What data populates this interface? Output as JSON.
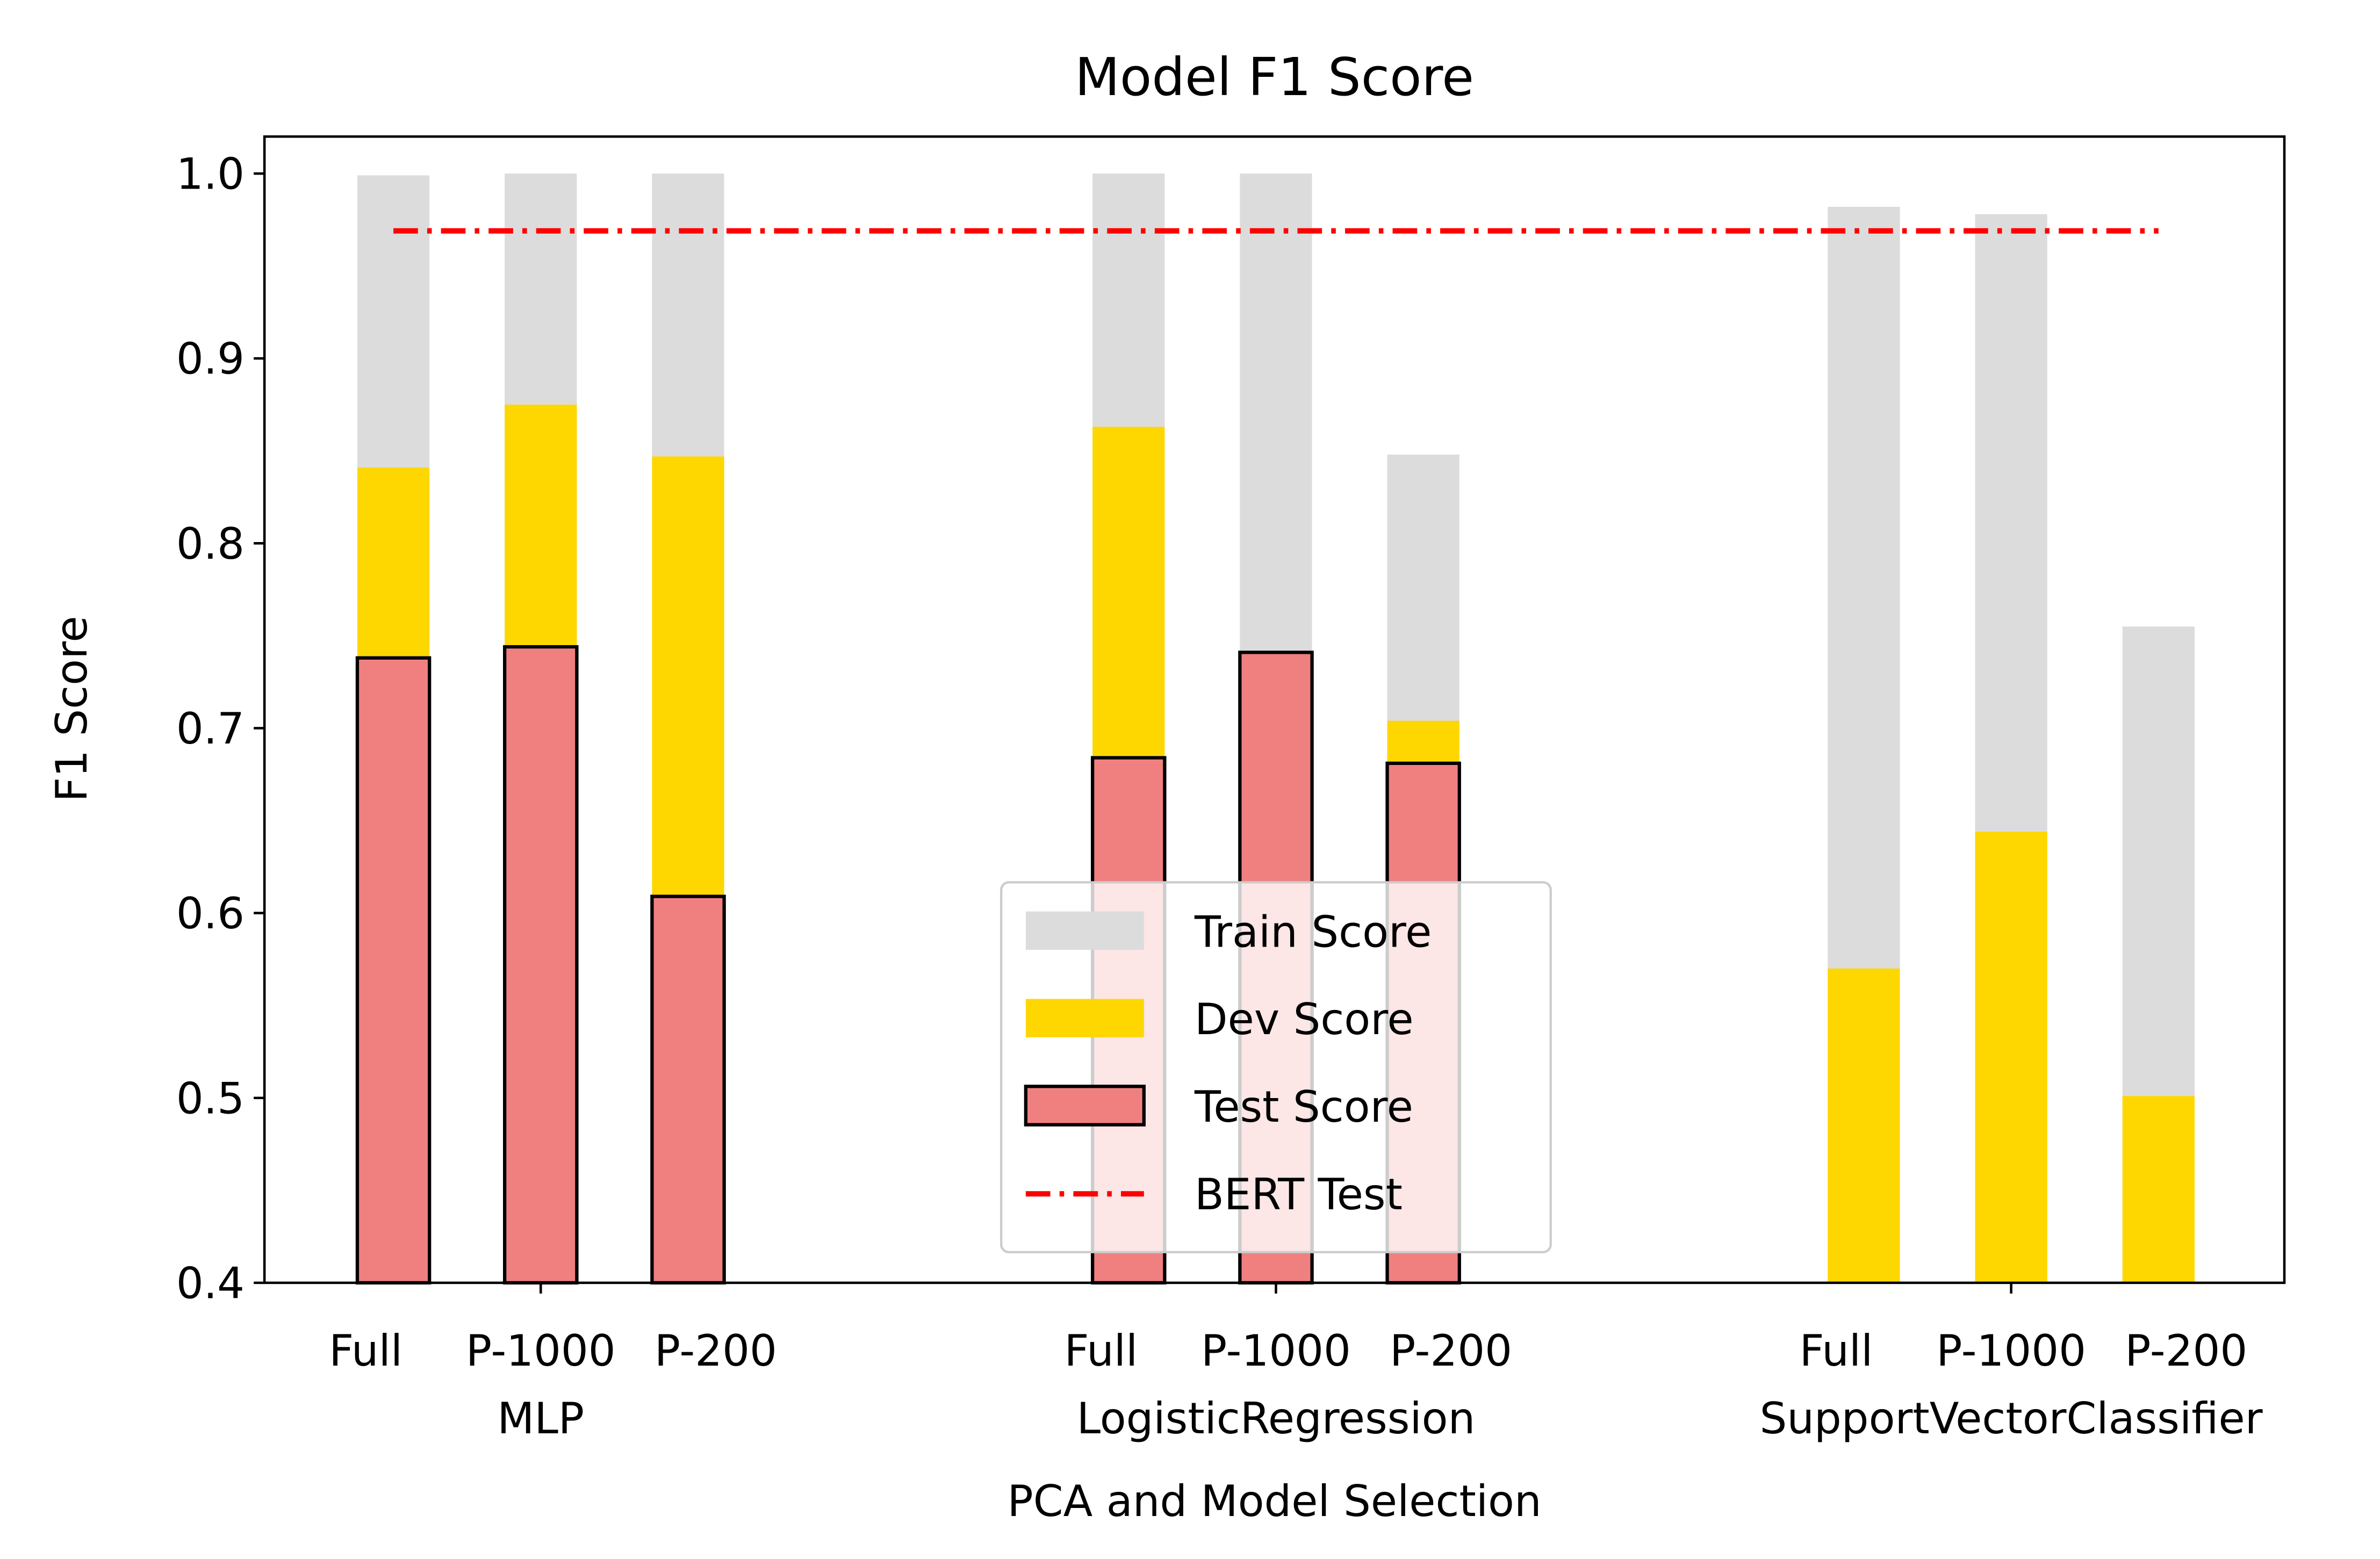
{
  "chart_data": {
    "type": "bar",
    "title": "Model F1 Score",
    "xlabel": "PCA and Model Selection",
    "ylabel": "F1 Score",
    "ylim": [
      0.4,
      1.02
    ],
    "yticks": [
      "0.4",
      "0.5",
      "0.6",
      "0.7",
      "0.8",
      "0.9",
      "1.0"
    ],
    "grid": false,
    "legend_placement": "bottom-center",
    "groups": [
      {
        "name": "MLP",
        "categories": [
          "Full",
          "P-1000",
          "P-200"
        ]
      },
      {
        "name": "LogisticRegression",
        "categories": [
          "Full",
          "P-1000",
          "P-200"
        ]
      },
      {
        "name": "SupportVectorClassifier",
        "categories": [
          "Full",
          "P-1000",
          "P-200"
        ]
      }
    ],
    "series": [
      {
        "name": "Train Score",
        "color": "#dcdcdc",
        "values": [
          0.999,
          1.0,
          1.0,
          1.0,
          1.0,
          0.848,
          0.982,
          0.978,
          0.755
        ]
      },
      {
        "name": "Dev Score",
        "color": "#ffd700",
        "values": [
          0.841,
          0.875,
          0.847,
          0.863,
          0.741,
          0.704,
          0.57,
          0.644,
          0.501
        ]
      },
      {
        "name": "Test Score",
        "color": "#f08080",
        "values": [
          0.738,
          0.744,
          0.609,
          0.684,
          0.741,
          0.681,
          null,
          null,
          null
        ]
      }
    ],
    "reference_line": {
      "name": "BERT Test",
      "value": 0.969,
      "color": "#ff0000",
      "style": "dash-dot"
    }
  }
}
